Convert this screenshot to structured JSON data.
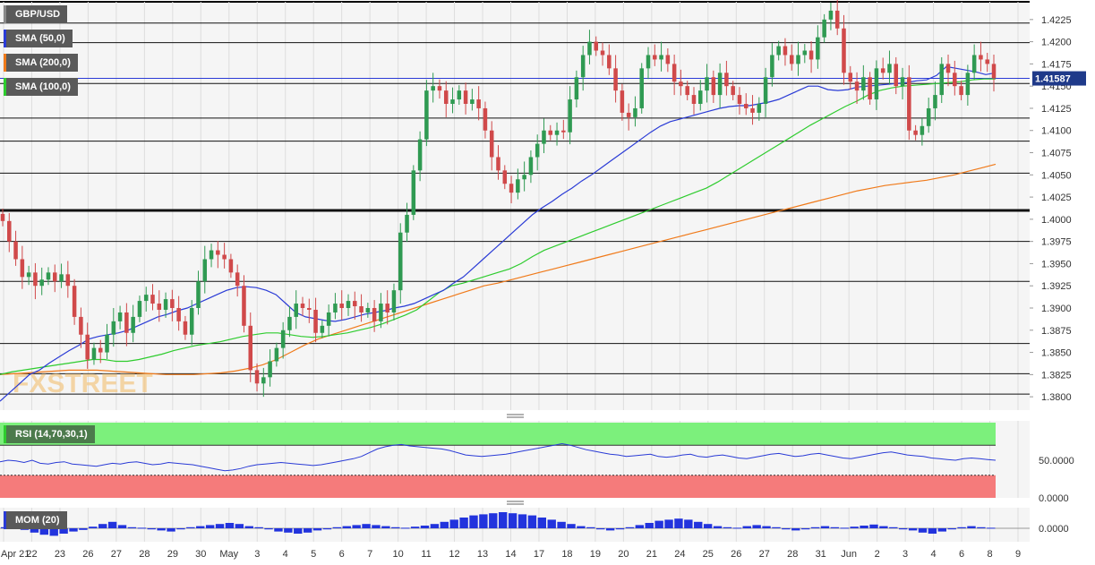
{
  "chart_data": [
    {
      "type": "candlestick",
      "symbol": "GBP/USD",
      "indicators": [
        {
          "name": "SMA (50,0)",
          "color": "#2a3bd6"
        },
        {
          "name": "SMA (200,0)",
          "color": "#f07a1a"
        },
        {
          "name": "SMA (100,0)",
          "color": "#2ecc2e"
        }
      ],
      "last_price": "1.41587",
      "last_value": 1.41587,
      "ylim": [
        1.3785,
        1.4245
      ],
      "y_ticks": [
        "1.3800",
        "1.3825",
        "1.3850",
        "1.3875",
        "1.3900",
        "1.3925",
        "1.3950",
        "1.3975",
        "1.4000",
        "1.4025",
        "1.4050",
        "1.4075",
        "1.4100",
        "1.4125",
        "1.4150",
        "1.4175",
        "1.4200",
        "1.4225"
      ],
      "x_ticks": [
        "Apr 21",
        "22",
        "23",
        "26",
        "27",
        "28",
        "29",
        "30",
        "May",
        "3",
        "4",
        "5",
        "6",
        "7",
        "10",
        "11",
        "12",
        "13",
        "14",
        "17",
        "18",
        "19",
        "20",
        "21",
        "24",
        "25",
        "26",
        "27",
        "28",
        "31",
        "Jun",
        "2",
        "3",
        "4",
        "6",
        "8",
        "9"
      ],
      "horizontal_levels": [
        1.4221,
        1.4199,
        1.4153,
        1.4114,
        1.4088,
        1.4052,
        1.401,
        1.3975,
        1.393,
        1.386,
        1.3826,
        1.3803
      ],
      "candles_close": [
        1.3998,
        1.3975,
        1.3955,
        1.3935,
        1.394,
        1.3925,
        1.3932,
        1.394,
        1.393,
        1.3938,
        1.3925,
        1.389,
        1.387,
        1.3842,
        1.3855,
        1.385,
        1.387,
        1.3885,
        1.3895,
        1.3872,
        1.389,
        1.3908,
        1.3915,
        1.3905,
        1.3898,
        1.391,
        1.39,
        1.3885,
        1.387,
        1.39,
        1.393,
        1.3955,
        1.3965,
        1.396,
        1.3955,
        1.394,
        1.3925,
        1.388,
        1.383,
        1.3815,
        1.3822,
        1.384,
        1.3855,
        1.3875,
        1.389,
        1.3905,
        1.39,
        1.3898,
        1.3872,
        1.388,
        1.3895,
        1.3905,
        1.39,
        1.3908,
        1.3902,
        1.3895,
        1.39,
        1.3885,
        1.3905,
        1.3895,
        1.392,
        1.3985,
        1.4005,
        1.4055,
        1.409,
        1.4145,
        1.415,
        1.4145,
        1.413,
        1.4135,
        1.4145,
        1.413,
        1.4135,
        1.4125,
        1.41,
        1.407,
        1.4055,
        1.404,
        1.403,
        1.4045,
        1.405,
        1.407,
        1.4085,
        1.41,
        1.4095,
        1.41,
        1.4098,
        1.4135,
        1.416,
        1.4185,
        1.42,
        1.419,
        1.4185,
        1.417,
        1.4145,
        1.412,
        1.4115,
        1.4125,
        1.417,
        1.4185,
        1.418,
        1.4185,
        1.4175,
        1.4155,
        1.415,
        1.414,
        1.413,
        1.4145,
        1.416,
        1.414,
        1.4165,
        1.415,
        1.414,
        1.413,
        1.4125,
        1.412,
        1.413,
        1.416,
        1.4185,
        1.4195,
        1.4185,
        1.4175,
        1.4185,
        1.419,
        1.418,
        1.4205,
        1.4225,
        1.4235,
        1.4215,
        1.4165,
        1.4155,
        1.4145,
        1.416,
        1.4135,
        1.417,
        1.4165,
        1.4175,
        1.415,
        1.416,
        1.41,
        1.4095,
        1.4105,
        1.4125,
        1.414,
        1.4175,
        1.4165,
        1.415,
        1.414,
        1.4165,
        1.4185,
        1.418,
        1.4175,
        1.4159
      ],
      "sma50": [
        1.3795,
        1.3805,
        1.3815,
        1.3825,
        1.383,
        1.3838,
        1.3845,
        1.3852,
        1.3858,
        1.3865,
        1.3868,
        1.387,
        1.3872,
        1.3875,
        1.388,
        1.3885,
        1.389,
        1.3893,
        1.3897,
        1.39,
        1.3905,
        1.391,
        1.3915,
        1.392,
        1.3923,
        1.3924,
        1.3923,
        1.392,
        1.3915,
        1.3905,
        1.3895,
        1.389,
        1.3888,
        1.3886,
        1.3885,
        1.3887,
        1.389,
        1.3893,
        1.3895,
        1.3897,
        1.39,
        1.3902,
        1.3905,
        1.391,
        1.3915,
        1.392,
        1.3928,
        1.3935,
        1.3945,
        1.3955,
        1.3965,
        1.3975,
        1.3985,
        1.3995,
        1.4005,
        1.4013,
        1.402,
        1.4028,
        1.4035,
        1.4043,
        1.405,
        1.4058,
        1.4066,
        1.4074,
        1.4082,
        1.409,
        1.4098,
        1.4105,
        1.411,
        1.4113,
        1.4116,
        1.4119,
        1.4122,
        1.4125,
        1.4127,
        1.4128,
        1.4128,
        1.413,
        1.4132,
        1.4135,
        1.414,
        1.4145,
        1.415,
        1.415,
        1.4146,
        1.4145,
        1.4146,
        1.4149,
        1.415,
        1.4151,
        1.4152,
        1.4153,
        1.4154,
        1.4156,
        1.4157,
        1.4162,
        1.4172,
        1.417,
        1.4168,
        1.4166,
        1.4163,
        1.4165
      ],
      "sma100": [
        1.3825,
        1.3828,
        1.383,
        1.3832,
        1.3834,
        1.3836,
        1.3838,
        1.384,
        1.3842,
        1.3842,
        1.384,
        1.384,
        1.3842,
        1.3845,
        1.3848,
        1.3852,
        1.3855,
        1.3858,
        1.386,
        1.3862,
        1.3865,
        1.3868,
        1.387,
        1.3872,
        1.3872,
        1.387,
        1.3868,
        1.3867,
        1.3868,
        1.387,
        1.3872,
        1.3875,
        1.3878,
        1.3882,
        1.3887,
        1.3892,
        1.3898,
        1.3908,
        1.3918,
        1.3925,
        1.3928,
        1.3932,
        1.3936,
        1.394,
        1.3944,
        1.395,
        1.3958,
        1.3965,
        1.397,
        1.3975,
        1.398,
        1.3985,
        1.399,
        1.3995,
        1.4,
        1.4005,
        1.401,
        1.4015,
        1.402,
        1.4025,
        1.403,
        1.4035,
        1.4042,
        1.405,
        1.4058,
        1.4066,
        1.4074,
        1.4082,
        1.409,
        1.4098,
        1.4106,
        1.4113,
        1.412,
        1.4127,
        1.4133,
        1.414,
        1.4145,
        1.4148,
        1.415,
        1.4151,
        1.4152,
        1.4153,
        1.4154,
        1.4155,
        1.4157,
        1.4158,
        1.4158
      ],
      "sma200": [
        1.3825,
        1.3826,
        1.3827,
        1.3828,
        1.3829,
        1.383,
        1.383,
        1.383,
        1.3829,
        1.3828,
        1.3827,
        1.3826,
        1.3825,
        1.3825,
        1.3825,
        1.3826,
        1.3827,
        1.3829,
        1.3832,
        1.3836,
        1.3842,
        1.385,
        1.3858,
        1.3865,
        1.387,
        1.3875,
        1.388,
        1.3885,
        1.389,
        1.3895,
        1.39,
        1.3905,
        1.391,
        1.3915,
        1.392,
        1.3925,
        1.3928,
        1.3932,
        1.3936,
        1.394,
        1.3944,
        1.3948,
        1.3952,
        1.3956,
        1.396,
        1.3964,
        1.3968,
        1.3972,
        1.3976,
        1.398,
        1.3984,
        1.3988,
        1.3992,
        1.3996,
        1.4,
        1.4004,
        1.4008,
        1.4012,
        1.4016,
        1.402,
        1.4024,
        1.4028,
        1.4032,
        1.4035,
        1.4038,
        1.404,
        1.4042,
        1.4044,
        1.4047,
        1.405,
        1.4054,
        1.4058,
        1.4062
      ]
    },
    {
      "type": "line",
      "name": "RSI (14,70,30,1)",
      "y_ticks": [
        "50.0000",
        "0.0000"
      ],
      "overbought": 70,
      "oversold": 30,
      "values": [
        48,
        50,
        49,
        47,
        50,
        46,
        45,
        47,
        48,
        45,
        44,
        43,
        42,
        44,
        46,
        45,
        47,
        48,
        46,
        44,
        45,
        47,
        46,
        45,
        44,
        42,
        40,
        38,
        36,
        37,
        39,
        42,
        44,
        45,
        46,
        47,
        46,
        45,
        44,
        43,
        44,
        46,
        48,
        50,
        52,
        55,
        60,
        65,
        68,
        70,
        71,
        69,
        68,
        67,
        66,
        65,
        63,
        60,
        57,
        56,
        55,
        56,
        57,
        58,
        60,
        62,
        64,
        66,
        68,
        70,
        72,
        70,
        67,
        64,
        62,
        60,
        58,
        57,
        55,
        56,
        57,
        58,
        55,
        54,
        55,
        57,
        58,
        55,
        54,
        56,
        57,
        55,
        53,
        52,
        54,
        56,
        58,
        59,
        57,
        55,
        56,
        58,
        59,
        57,
        55,
        53,
        52,
        54,
        56,
        58,
        60,
        61,
        59,
        57,
        56,
        55,
        53,
        52,
        51,
        50,
        52,
        53,
        52,
        51,
        50
      ]
    },
    {
      "type": "bar",
      "name": "MOM (20)",
      "y_ticks": [
        "0.0000"
      ],
      "values": [
        0.0002,
        0.0001,
        -0.0003,
        -0.0008,
        -0.0012,
        -0.0014,
        -0.001,
        -0.0006,
        -0.0003,
        0.0003,
        0.0008,
        0.0012,
        0.0006,
        0.0002,
        0.0001,
        -0.0002,
        -0.0004,
        -0.0006,
        -0.0002,
        0.0002,
        0.0004,
        0.0006,
        0.0008,
        0.001,
        0.0008,
        0.0004,
        0.0002,
        -0.0002,
        -0.0006,
        -0.0008,
        -0.001,
        -0.0008,
        -0.0004,
        -0.0002,
        0.0002,
        0.0004,
        0.0006,
        0.0008,
        0.0006,
        0.0004,
        0.0002,
        0.0001,
        0.0003,
        0.0005,
        0.0008,
        0.0012,
        0.0016,
        0.002,
        0.0024,
        0.0026,
        0.0028,
        0.003,
        0.0028,
        0.0026,
        0.0024,
        0.002,
        0.0016,
        0.0012,
        0.0008,
        0.0004,
        0.0002,
        -0.0002,
        -0.0004,
        -0.0002,
        0.0002,
        0.0006,
        0.001,
        0.0014,
        0.0016,
        0.0018,
        0.0016,
        0.0012,
        0.0008,
        0.0004,
        0.0002,
        0.0001,
        0.0004,
        0.0006,
        0.0004,
        0.0002,
        -0.0002,
        -0.0004,
        -0.0002,
        0.0002,
        0.0004,
        0.0002,
        0.0001,
        0.0003,
        0.0005,
        0.0007,
        0.0004,
        0.0002,
        -0.0002,
        -0.0004,
        -0.0008,
        -0.001,
        -0.0006,
        -0.0002,
        0.0002,
        0.0004,
        0.0002,
        0.0001
      ]
    }
  ],
  "watermark": "FXSTREET"
}
